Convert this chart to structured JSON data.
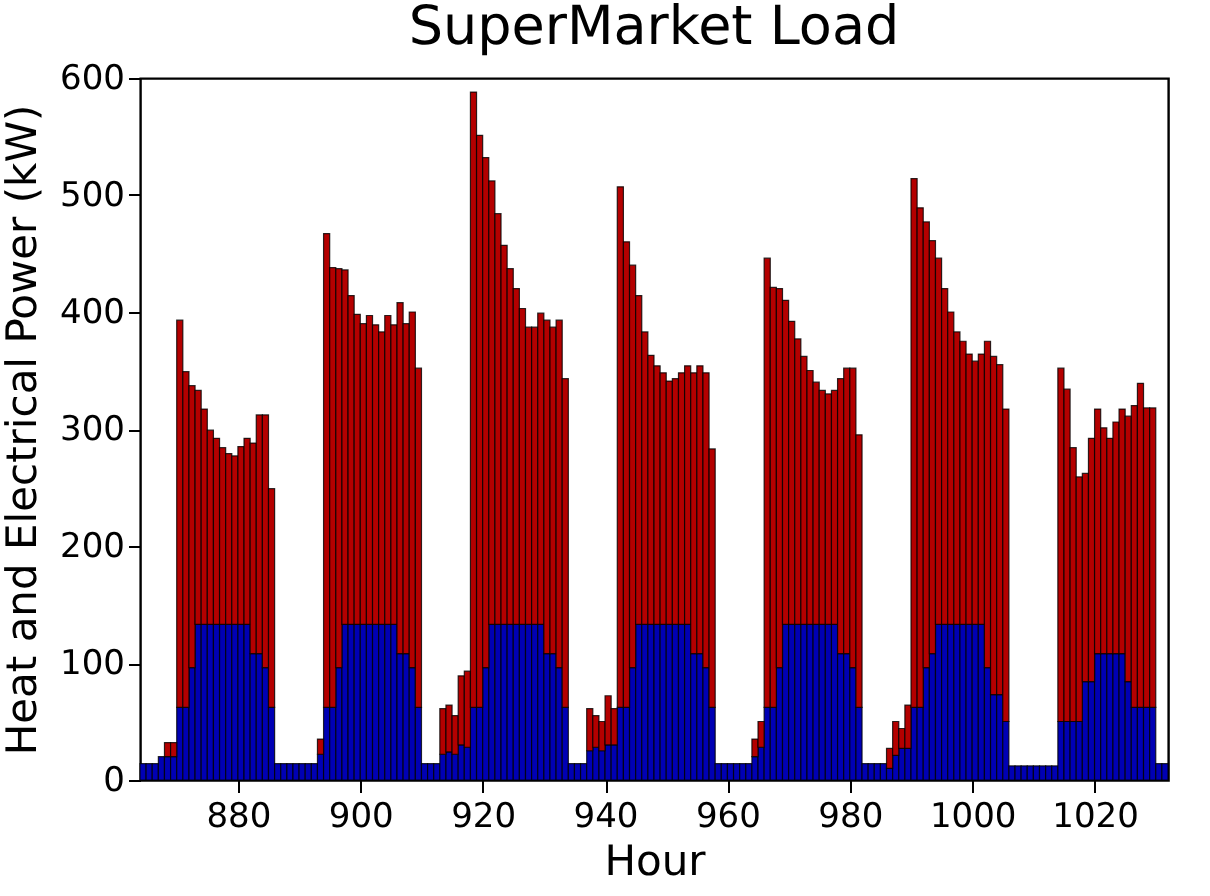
{
  "chart_data": {
    "type": "bar",
    "title": "SuperMarket Load",
    "xlabel": "Hour",
    "ylabel": "Heat and Electrical Power (kW)",
    "stacked": true,
    "x": [
      864,
      865,
      866,
      867,
      868,
      869,
      870,
      871,
      872,
      873,
      874,
      875,
      876,
      877,
      878,
      879,
      880,
      881,
      882,
      883,
      884,
      885,
      886,
      887,
      888,
      889,
      890,
      891,
      892,
      893,
      894,
      895,
      896,
      897,
      898,
      899,
      900,
      901,
      902,
      903,
      904,
      905,
      906,
      907,
      908,
      909,
      910,
      911,
      912,
      913,
      914,
      915,
      916,
      917,
      918,
      919,
      920,
      921,
      922,
      923,
      924,
      925,
      926,
      927,
      928,
      929,
      930,
      931,
      932,
      933,
      934,
      935,
      936,
      937,
      938,
      939,
      940,
      941,
      942,
      943,
      944,
      945,
      946,
      947,
      948,
      949,
      950,
      951,
      952,
      953,
      954,
      955,
      956,
      957,
      958,
      959,
      960,
      961,
      962,
      963,
      964,
      965,
      966,
      967,
      968,
      969,
      970,
      971,
      972,
      973,
      974,
      975,
      976,
      977,
      978,
      979,
      980,
      981,
      982,
      983,
      984,
      985,
      986,
      987,
      988,
      989,
      990,
      991,
      992,
      993,
      994,
      995,
      996,
      997,
      998,
      999,
      1000,
      1001,
      1002,
      1003,
      1004,
      1005,
      1006,
      1007,
      1008,
      1009,
      1010,
      1011,
      1012,
      1013,
      1014,
      1015,
      1016,
      1017,
      1018,
      1019,
      1020,
      1021,
      1022,
      1023,
      1024,
      1025,
      1026,
      1027,
      1028,
      1029,
      1030,
      1031
    ],
    "series": [
      {
        "color": "#0000b4",
        "values": [
          14,
          14,
          14,
          20,
          20,
          20,
          62,
          62,
          96,
          133,
          133,
          133,
          133,
          133,
          133,
          133,
          133,
          133,
          108,
          108,
          96,
          62,
          14,
          14,
          14,
          14,
          14,
          14,
          14,
          22,
          62,
          62,
          96,
          133,
          133,
          133,
          133,
          133,
          133,
          133,
          133,
          133,
          108,
          108,
          96,
          62,
          14,
          14,
          14,
          22,
          24,
          22,
          30,
          28,
          62,
          62,
          96,
          133,
          133,
          133,
          133,
          133,
          133,
          133,
          133,
          133,
          108,
          108,
          96,
          62,
          14,
          14,
          14,
          25,
          28,
          25,
          30,
          30,
          62,
          62,
          96,
          133,
          133,
          133,
          133,
          133,
          133,
          133,
          133,
          133,
          108,
          108,
          96,
          62,
          14,
          14,
          14,
          14,
          14,
          14,
          20,
          28,
          62,
          62,
          96,
          133,
          133,
          133,
          133,
          133,
          133,
          133,
          133,
          133,
          108,
          108,
          96,
          62,
          14,
          14,
          14,
          14,
          10,
          21,
          27,
          27,
          62,
          62,
          96,
          108,
          133,
          133,
          133,
          133,
          133,
          133,
          133,
          133,
          96,
          73,
          73,
          50,
          12,
          12,
          12,
          12,
          12,
          12,
          12,
          12,
          50,
          50,
          50,
          50,
          84,
          84,
          108,
          108,
          108,
          108,
          108,
          84,
          62,
          62,
          62,
          62,
          14,
          14
        ]
      },
      {
        "color": "#b40000",
        "values": [
          null,
          null,
          null,
          null,
          12,
          12,
          331,
          287,
          241,
          200,
          184,
          166,
          159,
          151,
          146,
          144,
          152,
          159,
          180,
          204,
          216,
          187,
          null,
          null,
          null,
          null,
          null,
          null,
          null,
          13,
          405,
          376,
          341,
          303,
          281,
          265,
          257,
          264,
          256,
          250,
          264,
          256,
          300,
          282,
          304,
          290,
          null,
          null,
          null,
          39,
          40,
          33,
          59,
          65,
          526,
          489,
          436,
          379,
          351,
          324,
          304,
          287,
          270,
          254,
          254,
          266,
          285,
          279,
          297,
          281,
          null,
          null,
          null,
          36,
          27,
          25,
          42,
          31,
          445,
          398,
          344,
          281,
          250,
          230,
          221,
          215,
          208,
          210,
          215,
          221,
          240,
          246,
          252,
          221,
          null,
          null,
          null,
          null,
          null,
          null,
          15,
          22,
          384,
          359,
          324,
          277,
          259,
          244,
          229,
          217,
          207,
          200,
          197,
          200,
          235,
          244,
          256,
          233,
          null,
          null,
          null,
          null,
          17,
          29,
          17,
          37,
          452,
          427,
          381,
          353,
          313,
          287,
          267,
          250,
          242,
          231,
          225,
          231,
          279,
          289,
          282,
          267,
          null,
          null,
          null,
          null,
          null,
          null,
          null,
          null,
          302,
          284,
          234,
          209,
          178,
          208,
          209,
          193,
          184,
          198,
          209,
          227,
          258,
          277,
          256,
          256,
          null,
          null
        ]
      }
    ],
    "xlim": [
      864,
      1032
    ],
    "xticks": [
      880,
      900,
      920,
      940,
      960,
      980,
      1000,
      1020
    ],
    "ylim": [
      0,
      600
    ],
    "yticks": [
      0,
      100,
      200,
      300,
      400,
      500,
      600
    ],
    "grid": false,
    "legend": false
  }
}
